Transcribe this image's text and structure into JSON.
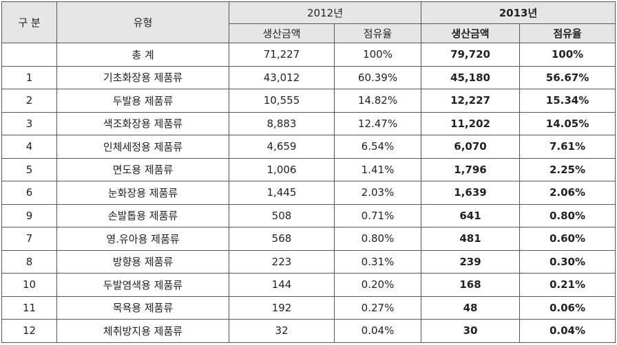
{
  "header": {
    "col_no": "구 분",
    "col_type": "유형",
    "year_a": "2012년",
    "year_b": "2013년",
    "amount": "생산금액",
    "share": "점유율"
  },
  "rows": [
    {
      "no": "",
      "type": "총 계",
      "a_amount": "71,227",
      "a_share": "100%",
      "b_amount": "79,720",
      "b_share": "100%"
    },
    {
      "no": "1",
      "type": "기초화장용 제품류",
      "a_amount": "43,012",
      "a_share": "60.39%",
      "b_amount": "45,180",
      "b_share": "56.67%"
    },
    {
      "no": "2",
      "type": "두발용 제품류",
      "a_amount": "10,555",
      "a_share": "14.82%",
      "b_amount": "12,227",
      "b_share": "15.34%"
    },
    {
      "no": "3",
      "type": "색조화장용 제품류",
      "a_amount": "8,883",
      "a_share": "12.47%",
      "b_amount": "11,202",
      "b_share": "14.05%"
    },
    {
      "no": "4",
      "type": "인체세정용 제품류",
      "a_amount": "4,659",
      "a_share": "6.54%",
      "b_amount": "6,070",
      "b_share": "7.61%"
    },
    {
      "no": "5",
      "type": "면도용 제품류",
      "a_amount": "1,006",
      "a_share": "1.41%",
      "b_amount": "1,796",
      "b_share": "2.25%"
    },
    {
      "no": "6",
      "type": "눈화장용 제품류",
      "a_amount": "1,445",
      "a_share": "2.03%",
      "b_amount": "1,639",
      "b_share": "2.06%"
    },
    {
      "no": "9",
      "type": "손발톱용 제품류",
      "a_amount": "508",
      "a_share": "0.71%",
      "b_amount": "641",
      "b_share": "0.80%"
    },
    {
      "no": "7",
      "type": "영.유아용 제품류",
      "a_amount": "568",
      "a_share": "0.80%",
      "b_amount": "481",
      "b_share": "0.60%"
    },
    {
      "no": "8",
      "type": "방향용 제품류",
      "a_amount": "223",
      "a_share": "0.31%",
      "b_amount": "239",
      "b_share": "0.30%"
    },
    {
      "no": "10",
      "type": "두발염색용 제품류",
      "a_amount": "144",
      "a_share": "0.20%",
      "b_amount": "168",
      "b_share": "0.21%"
    },
    {
      "no": "11",
      "type": "목욕용 제품류",
      "a_amount": "192",
      "a_share": "0.27%",
      "b_amount": "48",
      "b_share": "0.06%"
    },
    {
      "no": "12",
      "type": "체취방지용  제품류",
      "a_amount": "32",
      "a_share": "0.04%",
      "b_amount": "30",
      "b_share": "0.04%"
    }
  ]
}
